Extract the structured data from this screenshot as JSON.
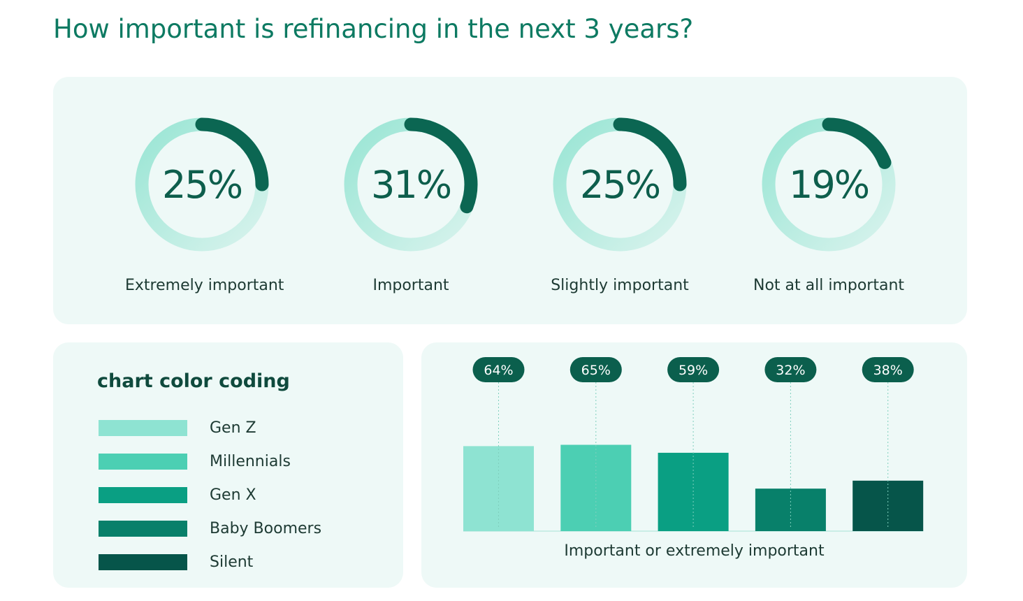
{
  "title": "How important is refinancing in the next 3 years?",
  "donuts": [
    {
      "value": 25,
      "display": "25%",
      "label": "Extremely important"
    },
    {
      "value": 31,
      "display": "31%",
      "label": "Important"
    },
    {
      "value": 25,
      "display": "25%",
      "label": "Slightly important"
    },
    {
      "value": 19,
      "display": "19%",
      "label": "Not at all important"
    }
  ],
  "legend": {
    "title": "chart color coding",
    "items": [
      {
        "label": "Gen Z",
        "color": "#8ee3d2"
      },
      {
        "label": "Millennials",
        "color": "#4ccfb3"
      },
      {
        "label": "Gen X",
        "color": "#0a9f83"
      },
      {
        "label": "Baby Boomers",
        "color": "#08806a"
      },
      {
        "label": "Silent",
        "color": "#06554a"
      }
    ]
  },
  "colors": {
    "title": "#0d7a62",
    "donut_arc": "#0b6652",
    "donut_track_start": "#99e5d4",
    "donut_track_end": "#d8f3ed",
    "badge": "#0b5f4d",
    "panel": "#eef9f7"
  },
  "chart_data": [
    {
      "type": "pie",
      "categories": [
        "Extremely important",
        "Important",
        "Slightly important",
        "Not at all important"
      ],
      "values": [
        25,
        31,
        25,
        19
      ],
      "unit": "%"
    },
    {
      "type": "bar",
      "categories": [
        "Gen Z",
        "Millennials",
        "Gen X",
        "Baby Boomers",
        "Silent"
      ],
      "values": [
        64,
        65,
        59,
        32,
        38
      ],
      "data_labels": [
        "64%",
        "65%",
        "59%",
        "32%",
        "38%"
      ],
      "xlabel": "Important or extremely important",
      "ylabel": "",
      "ylim": [
        0,
        100
      ],
      "grid": false,
      "legend": "separate panel, left"
    }
  ]
}
